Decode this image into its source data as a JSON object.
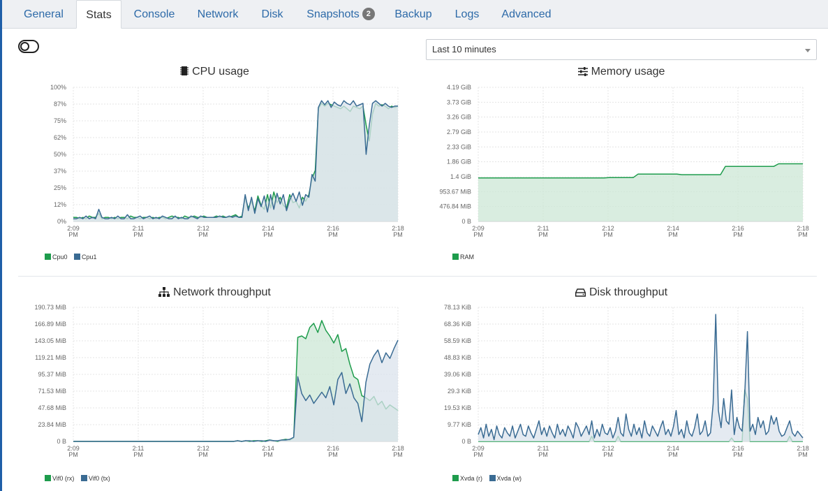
{
  "tabs": [
    {
      "label": "General"
    },
    {
      "label": "Stats",
      "active": true
    },
    {
      "label": "Console"
    },
    {
      "label": "Network"
    },
    {
      "label": "Disk"
    },
    {
      "label": "Snapshots",
      "badge": "2"
    },
    {
      "label": "Backup"
    },
    {
      "label": "Logs"
    },
    {
      "label": "Advanced"
    }
  ],
  "granularity": {
    "selected": "Last 10 minutes"
  },
  "colors": {
    "green": "#1e9c4c",
    "blue": "#3a6b93",
    "green_fill": "#cce7d6",
    "blue_fill": "#dbe3ec",
    "grid": "#e4e4e4"
  },
  "icons": {
    "cpu": "chip-icon",
    "memory": "sliders-icon",
    "network": "sitemap-icon",
    "disk": "hdd-icon",
    "toggle": "toggle-icon"
  },
  "charts": {
    "cpu": {
      "title": "CPU usage",
      "legend": [
        "Cpu0",
        "Cpu1"
      ]
    },
    "memory": {
      "title": "Memory usage",
      "legend": [
        "RAM"
      ]
    },
    "network": {
      "title": "Network throughput",
      "legend": [
        "Vif0 (rx)",
        "Vif0 (tx)"
      ]
    },
    "disk": {
      "title": "Disk throughput",
      "legend": [
        "Xvda (r)",
        "Xvda (w)"
      ]
    }
  },
  "chart_data": [
    {
      "type": "area",
      "title": "CPU usage",
      "x_ticks": [
        "2:09 PM",
        "2:11 PM",
        "2:12 PM",
        "2:14 PM",
        "2:16 PM",
        "2:18 PM"
      ],
      "y_ticks": [
        "100%",
        "87%",
        "75%",
        "62%",
        "50%",
        "37%",
        "25%",
        "12%",
        "0%"
      ],
      "ylim": [
        0,
        100
      ],
      "series": [
        {
          "name": "Cpu0",
          "color": "#1e9c4c",
          "values": [
            3,
            3,
            2,
            3,
            2,
            4,
            3,
            3,
            6,
            2,
            3,
            3,
            2,
            3,
            2,
            3,
            3,
            2,
            4,
            3,
            3,
            2,
            3,
            3,
            2,
            3,
            2,
            3,
            3,
            2,
            3,
            4,
            3,
            3,
            2,
            4,
            3,
            3,
            4,
            3,
            3,
            4,
            3,
            3,
            3,
            4,
            3,
            4,
            3,
            3,
            4,
            5,
            3,
            4,
            18,
            10,
            15,
            8,
            19,
            12,
            9,
            20,
            10,
            22,
            14,
            18,
            12,
            10,
            20,
            14,
            15,
            10,
            18,
            15,
            20,
            32,
            38,
            84,
            88,
            86,
            88,
            87,
            86,
            85,
            84,
            86,
            84,
            82,
            86,
            85,
            84,
            86,
            72,
            60,
            80,
            88,
            86,
            87,
            86,
            84,
            86,
            85,
            86
          ],
          "x_range": "2:09 PM – 2:18 PM"
        },
        {
          "name": "Cpu1",
          "color": "#3a6b93",
          "values": [
            2,
            2,
            3,
            2,
            4,
            2,
            3,
            2,
            9,
            3,
            2,
            2,
            3,
            2,
            4,
            2,
            2,
            5,
            2,
            2,
            3,
            4,
            2,
            3,
            4,
            2,
            3,
            2,
            4,
            3,
            2,
            2,
            4,
            2,
            3,
            2,
            2,
            4,
            3,
            2,
            4,
            3,
            3,
            3,
            3,
            3,
            4,
            3,
            3,
            4,
            3,
            4,
            3,
            3,
            20,
            8,
            18,
            6,
            17,
            11,
            19,
            7,
            20,
            9,
            21,
            13,
            20,
            8,
            16,
            21,
            15,
            22,
            12,
            20,
            18,
            35,
            30,
            85,
            90,
            87,
            90,
            85,
            89,
            87,
            86,
            90,
            88,
            87,
            90,
            86,
            87,
            88,
            50,
            72,
            88,
            90,
            88,
            86,
            88,
            86,
            85,
            86,
            86
          ]
        }
      ]
    },
    {
      "type": "area",
      "title": "Memory usage",
      "x_ticks": [
        "2:09 PM",
        "2:11 PM",
        "2:12 PM",
        "2:14 PM",
        "2:16 PM",
        "2:18 PM"
      ],
      "y_ticks": [
        "4.19 GiB",
        "3.73 GiB",
        "3.26 GiB",
        "2.79 GiB",
        "2.33 GiB",
        "1.86 GiB",
        "1.4 GiB",
        "953.67 MiB",
        "476.84 MiB",
        "0 B"
      ],
      "ylim_gib": [
        0,
        4.19
      ],
      "series": [
        {
          "name": "RAM",
          "color": "#1e9c4c",
          "values_gib": [
            1.36,
            1.36,
            1.36,
            1.36,
            1.36,
            1.36,
            1.36,
            1.36,
            1.36,
            1.36,
            1.36,
            1.36,
            1.36,
            1.36,
            1.36,
            1.36,
            1.36,
            1.36,
            1.36,
            1.36,
            1.36,
            1.36,
            1.36,
            1.36,
            1.36,
            1.36,
            1.36,
            1.37,
            1.37,
            1.37,
            1.37,
            1.37,
            1.37,
            1.48,
            1.48,
            1.48,
            1.48,
            1.48,
            1.48,
            1.48,
            1.48,
            1.48,
            1.46,
            1.46,
            1.46,
            1.46,
            1.46,
            1.46,
            1.46,
            1.46,
            1.46,
            1.72,
            1.72,
            1.72,
            1.72,
            1.72,
            1.72,
            1.72,
            1.72,
            1.72,
            1.72,
            1.72,
            1.8,
            1.8,
            1.8,
            1.8,
            1.8,
            1.8
          ]
        }
      ]
    },
    {
      "type": "area",
      "title": "Network throughput",
      "x_ticks": [
        "2:09 PM",
        "2:11 PM",
        "2:12 PM",
        "2:14 PM",
        "2:16 PM",
        "2:18 PM"
      ],
      "y_ticks": [
        "190.73 MiB",
        "166.89 MiB",
        "143.05 MiB",
        "119.21 MiB",
        "95.37 MiB",
        "71.53 MiB",
        "47.68 MiB",
        "23.84 MiB",
        "0 B"
      ],
      "ylim_mib": [
        0,
        190.73
      ],
      "series": [
        {
          "name": "Vif0 (rx)",
          "color": "#1e9c4c",
          "values_mib": [
            0,
            0,
            0,
            0,
            0,
            0,
            0,
            0,
            0,
            0,
            0,
            0,
            0,
            0,
            0,
            0,
            0,
            0,
            0,
            0,
            0,
            0,
            0,
            0,
            0,
            0,
            0,
            0,
            0,
            0,
            0,
            0,
            0,
            0,
            0,
            0,
            0,
            0,
            0,
            0,
            0,
            1,
            0,
            1,
            0,
            1,
            1,
            0,
            1,
            2,
            1,
            0,
            2,
            3,
            2,
            5,
            148,
            150,
            146,
            162,
            168,
            155,
            172,
            158,
            150,
            140,
            152,
            128,
            132,
            110,
            92,
            88,
            65,
            62,
            58,
            64,
            52,
            57,
            46,
            52,
            48,
            44
          ]
        },
        {
          "name": "Vif0 (tx)",
          "color": "#3a6b93",
          "values_mib": [
            0,
            0,
            0,
            0,
            0,
            0,
            0,
            0,
            0,
            0,
            0,
            0,
            0,
            0,
            0,
            0,
            0,
            0,
            0,
            0,
            0,
            0,
            0,
            0,
            0,
            0,
            0,
            0,
            0,
            0,
            0,
            0,
            0,
            0,
            0,
            0,
            0,
            0,
            0,
            0,
            0,
            1,
            0,
            1,
            1,
            0,
            1,
            1,
            0,
            2,
            1,
            1,
            2,
            2,
            3,
            6,
            92,
            68,
            58,
            66,
            54,
            62,
            70,
            62,
            78,
            52,
            88,
            98,
            68,
            82,
            62,
            54,
            28,
            84,
            110,
            122,
            130,
            112,
            126,
            118,
            132,
            144
          ]
        }
      ]
    },
    {
      "type": "area",
      "title": "Disk throughput",
      "x_ticks": [
        "2:09 PM",
        "2:11 PM",
        "2:12 PM",
        "2:14 PM",
        "2:16 PM",
        "2:18 PM"
      ],
      "y_ticks": [
        "78.13 KiB",
        "68.36 KiB",
        "58.59 KiB",
        "48.83 KiB",
        "39.06 KiB",
        "29.3 KiB",
        "19.53 KiB",
        "9.77 KiB",
        "0 B"
      ],
      "ylim_kib": [
        0,
        78.13
      ],
      "series": [
        {
          "name": "Xvda (r)",
          "color": "#1e9c4c",
          "values_kib": [
            0,
            0,
            0,
            0,
            0,
            0,
            0,
            0,
            0,
            0,
            0,
            0,
            0,
            0,
            0,
            0,
            0,
            0,
            0,
            0,
            0,
            0,
            0,
            0,
            0,
            0,
            0,
            0,
            0,
            0,
            0,
            0,
            0,
            0,
            0,
            0,
            0,
            0,
            0,
            0,
            0,
            0,
            0,
            3,
            0,
            0,
            0,
            0,
            0,
            0,
            0,
            0,
            0,
            3,
            0,
            0,
            0,
            0,
            0,
            0,
            0,
            0,
            0,
            0,
            0,
            0,
            0,
            0,
            0,
            0,
            0,
            0,
            0,
            0,
            0,
            0,
            0,
            0,
            0,
            0,
            0,
            0,
            0,
            0,
            0,
            0,
            0,
            0,
            0,
            0,
            0,
            0,
            0,
            0,
            0,
            0,
            2,
            0,
            0,
            0,
            0,
            30,
            25,
            0,
            0,
            0,
            0,
            0,
            0,
            0,
            0,
            0,
            0,
            0,
            0,
            0,
            0,
            0,
            3,
            0,
            0,
            0,
            0,
            0
          ]
        },
        {
          "name": "Xvda (w)",
          "color": "#3a6b93",
          "values_kib": [
            4,
            8,
            2,
            10,
            3,
            7,
            1,
            9,
            4,
            2,
            8,
            5,
            3,
            9,
            2,
            6,
            10,
            4,
            3,
            9,
            5,
            2,
            7,
            12,
            4,
            8,
            3,
            9,
            5,
            2,
            10,
            4,
            7,
            3,
            9,
            6,
            2,
            11,
            8,
            3,
            6,
            9,
            4,
            12,
            2,
            7,
            3,
            10,
            5,
            4,
            8,
            2,
            6,
            14,
            5,
            3,
            16,
            7,
            3,
            10,
            4,
            8,
            2,
            12,
            5,
            3,
            9,
            6,
            3,
            8,
            12,
            4,
            7,
            3,
            9,
            18,
            4,
            7,
            2,
            12,
            5,
            3,
            8,
            16,
            4,
            6,
            12,
            3,
            5,
            22,
            74,
            18,
            8,
            25,
            12,
            10,
            30,
            4,
            14,
            8,
            6,
            28,
            64,
            6,
            10,
            4,
            14,
            8,
            12,
            4,
            6,
            15,
            10,
            14,
            6,
            3,
            4,
            8,
            12,
            5,
            3,
            6,
            4,
            2
          ]
        }
      ]
    }
  ]
}
